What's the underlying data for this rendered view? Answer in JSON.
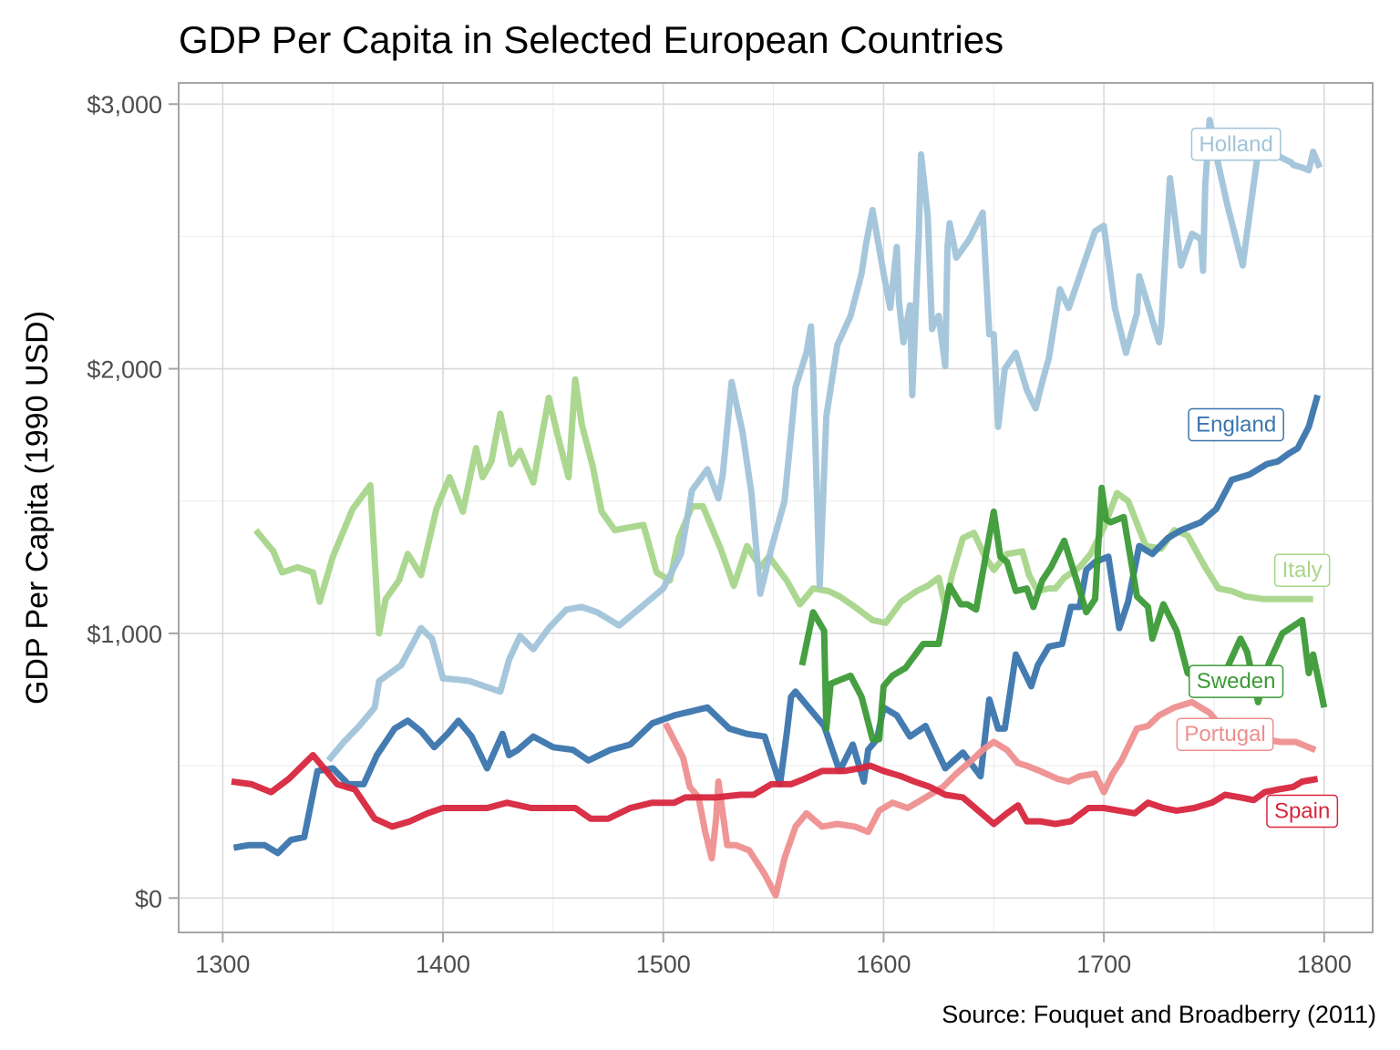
{
  "chart_data": {
    "type": "line",
    "title": "GDP Per Capita in Selected European Countries",
    "xlabel": "",
    "ylabel": "GDP Per Capita (1990 USD)",
    "caption": "Source: Fouquet and Broadberry (2011)",
    "xlim": [
      1280,
      1822
    ],
    "ylim": [
      -130,
      3080
    ],
    "x_ticks": [
      1300,
      1400,
      1500,
      1600,
      1700,
      1800
    ],
    "x_tick_labels": [
      "1300",
      "1400",
      "1500",
      "1600",
      "1700",
      "1800"
    ],
    "y_ticks": [
      0,
      1000,
      2000,
      3000
    ],
    "y_tick_labels": [
      "$0",
      "$1,000",
      "$2,000",
      "$3,000"
    ],
    "grid": true,
    "legend": "direct-labels-right",
    "series": [
      {
        "name": "Holland",
        "color": "#a1c4d9",
        "label_value": 2850,
        "x": [
          1348,
          1355,
          1362,
          1369,
          1371,
          1381,
          1390,
          1395,
          1400,
          1407,
          1412,
          1419,
          1426,
          1430,
          1435,
          1441,
          1448,
          1456,
          1463,
          1470,
          1480,
          1490,
          1500,
          1508,
          1513,
          1520,
          1525,
          1527,
          1531,
          1536,
          1540,
          1544,
          1549,
          1555,
          1560,
          1565,
          1567,
          1568,
          1571,
          1574,
          1579,
          1585,
          1590,
          1592,
          1595,
          1600,
          1603,
          1606,
          1607,
          1609,
          1612,
          1613,
          1616,
          1617,
          1620,
          1622,
          1623,
          1625,
          1628,
          1629,
          1630,
          1633,
          1639,
          1645,
          1648,
          1650,
          1652,
          1655,
          1660,
          1665,
          1669,
          1672,
          1675,
          1680,
          1684,
          1689,
          1696,
          1700,
          1705,
          1710,
          1715,
          1716,
          1720,
          1725,
          1726,
          1730,
          1735,
          1740,
          1744,
          1745,
          1746,
          1748,
          1752,
          1756,
          1760,
          1763,
          1770,
          1775,
          1780,
          1785,
          1786,
          1790,
          1793,
          1795,
          1798
        ],
        "values": [
          520,
          590,
          650,
          720,
          820,
          880,
          1020,
          980,
          830,
          825,
          820,
          800,
          780,
          900,
          990,
          940,
          1020,
          1090,
          1100,
          1080,
          1030,
          1100,
          1170,
          1300,
          1540,
          1620,
          1510,
          1600,
          1950,
          1760,
          1530,
          1150,
          1320,
          1500,
          1930,
          2060,
          2160,
          2000,
          1180,
          1820,
          2090,
          2200,
          2360,
          2470,
          2600,
          2360,
          2230,
          2460,
          2250,
          2100,
          2240,
          1900,
          2510,
          2810,
          2580,
          2150,
          2170,
          2200,
          2010,
          2460,
          2550,
          2420,
          2490,
          2590,
          2130,
          2130,
          1780,
          2000,
          2060,
          1920,
          1850,
          1950,
          2040,
          2300,
          2230,
          2350,
          2520,
          2540,
          2230,
          2060,
          2210,
          2350,
          2240,
          2100,
          2160,
          2720,
          2390,
          2510,
          2490,
          2370,
          2690,
          2940,
          2770,
          2620,
          2490,
          2390,
          2820,
          2850,
          2800,
          2780,
          2770,
          2760,
          2750,
          2820,
          2760
        ]
      },
      {
        "name": "England",
        "color": "#3a75ad",
        "label_value": 1790,
        "x": [
          1305,
          1312,
          1319,
          1325,
          1331,
          1337,
          1343,
          1350,
          1357,
          1364,
          1370,
          1378,
          1384,
          1390,
          1396,
          1402,
          1407,
          1413,
          1420,
          1427,
          1430,
          1434,
          1441,
          1450,
          1459,
          1466,
          1476,
          1485,
          1495,
          1505,
          1510,
          1520,
          1530,
          1538,
          1546,
          1553,
          1556,
          1558,
          1560,
          1565,
          1573,
          1580,
          1586,
          1591,
          1593,
          1597,
          1600,
          1606,
          1612,
          1619,
          1628,
          1636,
          1644,
          1648,
          1652,
          1655,
          1660,
          1667,
          1670,
          1675,
          1681,
          1685,
          1689,
          1692,
          1696,
          1702,
          1707,
          1711,
          1716,
          1722,
          1729,
          1735,
          1744,
          1751,
          1758,
          1766,
          1774,
          1779,
          1784,
          1788,
          1793,
          1797
        ],
        "values": [
          190,
          200,
          200,
          170,
          220,
          230,
          480,
          490,
          430,
          430,
          540,
          640,
          670,
          630,
          570,
          620,
          670,
          610,
          490,
          620,
          540,
          560,
          610,
          570,
          560,
          520,
          560,
          580,
          660,
          690,
          700,
          720,
          640,
          620,
          610,
          430,
          620,
          760,
          780,
          730,
          650,
          480,
          580,
          440,
          560,
          600,
          720,
          690,
          610,
          650,
          490,
          550,
          460,
          750,
          640,
          640,
          920,
          800,
          880,
          950,
          960,
          1100,
          1100,
          1240,
          1270,
          1290,
          1020,
          1120,
          1330,
          1300,
          1360,
          1390,
          1420,
          1470,
          1580,
          1600,
          1640,
          1650,
          1680,
          1700,
          1780,
          1900
        ]
      },
      {
        "name": "Italy",
        "color": "#a8d58a",
        "label_value": 1240,
        "x": [
          1315,
          1323,
          1327,
          1334,
          1341,
          1344,
          1350,
          1359,
          1367,
          1371,
          1374,
          1380,
          1384,
          1390,
          1397,
          1403,
          1409,
          1415,
          1418,
          1422,
          1426,
          1431,
          1435,
          1441,
          1448,
          1452,
          1457,
          1460,
          1463,
          1468,
          1472,
          1478,
          1484,
          1491,
          1497,
          1503,
          1507,
          1513,
          1518,
          1526,
          1532,
          1538,
          1544,
          1548,
          1556,
          1562,
          1568,
          1575,
          1580,
          1587,
          1595,
          1601,
          1608,
          1615,
          1620,
          1625,
          1628,
          1631,
          1636,
          1641,
          1646,
          1650,
          1656,
          1663,
          1666,
          1670,
          1675,
          1678,
          1682,
          1689,
          1694,
          1700,
          1706,
          1711,
          1719,
          1726,
          1732,
          1738,
          1746,
          1752,
          1758,
          1764,
          1772,
          1781,
          1795
        ],
        "values": [
          1390,
          1310,
          1230,
          1250,
          1230,
          1120,
          1290,
          1470,
          1560,
          1000,
          1130,
          1200,
          1300,
          1220,
          1470,
          1590,
          1460,
          1700,
          1590,
          1650,
          1830,
          1640,
          1690,
          1570,
          1890,
          1750,
          1590,
          1960,
          1790,
          1630,
          1460,
          1390,
          1400,
          1410,
          1230,
          1200,
          1360,
          1480,
          1480,
          1320,
          1180,
          1330,
          1250,
          1290,
          1200,
          1110,
          1170,
          1160,
          1140,
          1100,
          1050,
          1040,
          1120,
          1160,
          1180,
          1210,
          1100,
          1220,
          1360,
          1380,
          1290,
          1240,
          1300,
          1310,
          1220,
          1160,
          1170,
          1170,
          1210,
          1250,
          1300,
          1400,
          1530,
          1500,
          1330,
          1320,
          1390,
          1370,
          1250,
          1170,
          1160,
          1140,
          1130,
          1130,
          1130
        ]
      },
      {
        "name": "Sweden",
        "color": "#3c9a36",
        "label_value": 820,
        "x": [
          1563,
          1568,
          1573,
          1574,
          1576,
          1585,
          1590,
          1595,
          1598,
          1600,
          1604,
          1610,
          1618,
          1625,
          1630,
          1635,
          1638,
          1642,
          1650,
          1653,
          1656,
          1660,
          1665,
          1668,
          1672,
          1676,
          1682,
          1688,
          1692,
          1696,
          1699,
          1701,
          1703,
          1709,
          1715,
          1720,
          1722,
          1727,
          1733,
          1738,
          1743,
          1750,
          1756,
          1762,
          1765,
          1770,
          1775,
          1781,
          1790,
          1793,
          1795,
          1800
        ],
        "values": [
          880,
          1080,
          1010,
          640,
          810,
          840,
          760,
          600,
          600,
          800,
          840,
          870,
          960,
          960,
          1180,
          1110,
          1110,
          1090,
          1460,
          1290,
          1270,
          1160,
          1170,
          1100,
          1200,
          1250,
          1350,
          1190,
          1080,
          1130,
          1550,
          1430,
          1420,
          1440,
          1140,
          1100,
          980,
          1110,
          1010,
          850,
          830,
          850,
          870,
          980,
          930,
          740,
          890,
          1000,
          1050,
          850,
          920,
          720
        ]
      },
      {
        "name": "Portugal",
        "color": "#ee8f8f",
        "label_value": 620,
        "x": [
          1501,
          1509,
          1512,
          1516,
          1519,
          1522,
          1524,
          1525,
          1529,
          1533,
          1539,
          1546,
          1551,
          1555,
          1560,
          1565,
          1572,
          1579,
          1587,
          1593,
          1598,
          1604,
          1611,
          1619,
          1627,
          1633,
          1640,
          1645,
          1650,
          1656,
          1661,
          1665,
          1671,
          1679,
          1684,
          1689,
          1696,
          1700,
          1704,
          1708,
          1715,
          1720,
          1725,
          1732,
          1740,
          1748,
          1754,
          1760,
          1766,
          1773,
          1780,
          1787,
          1796
        ],
        "values": [
          660,
          530,
          420,
          380,
          250,
          150,
          300,
          440,
          200,
          200,
          180,
          90,
          10,
          150,
          270,
          320,
          270,
          280,
          270,
          250,
          330,
          360,
          340,
          380,
          420,
          470,
          520,
          560,
          590,
          560,
          510,
          500,
          480,
          450,
          440,
          460,
          470,
          400,
          470,
          520,
          640,
          650,
          690,
          720,
          740,
          700,
          640,
          620,
          610,
          600,
          590,
          590,
          560
        ]
      },
      {
        "name": "Spain",
        "color": "#d7263d",
        "label_value": 330,
        "x": [
          1304,
          1313,
          1322,
          1330,
          1341,
          1348,
          1352,
          1360,
          1369,
          1377,
          1385,
          1393,
          1400,
          1410,
          1420,
          1429,
          1440,
          1450,
          1460,
          1467,
          1475,
          1485,
          1495,
          1505,
          1510,
          1516,
          1524,
          1535,
          1541,
          1549,
          1558,
          1564,
          1572,
          1582,
          1589,
          1594,
          1600,
          1608,
          1614,
          1621,
          1628,
          1636,
          1643,
          1650,
          1656,
          1661,
          1665,
          1671,
          1678,
          1685,
          1693,
          1700,
          1707,
          1714,
          1720,
          1727,
          1733,
          1741,
          1749,
          1755,
          1762,
          1768,
          1773,
          1779,
          1786,
          1790,
          1797
        ],
        "values": [
          440,
          430,
          400,
          450,
          540,
          470,
          430,
          410,
          300,
          270,
          290,
          320,
          340,
          340,
          340,
          360,
          340,
          340,
          340,
          300,
          300,
          340,
          360,
          360,
          380,
          380,
          380,
          390,
          390,
          430,
          430,
          450,
          480,
          480,
          490,
          500,
          480,
          460,
          440,
          420,
          390,
          380,
          330,
          280,
          320,
          350,
          290,
          290,
          280,
          290,
          340,
          340,
          330,
          320,
          360,
          340,
          330,
          340,
          360,
          390,
          380,
          370,
          400,
          410,
          420,
          440,
          450
        ]
      }
    ]
  }
}
